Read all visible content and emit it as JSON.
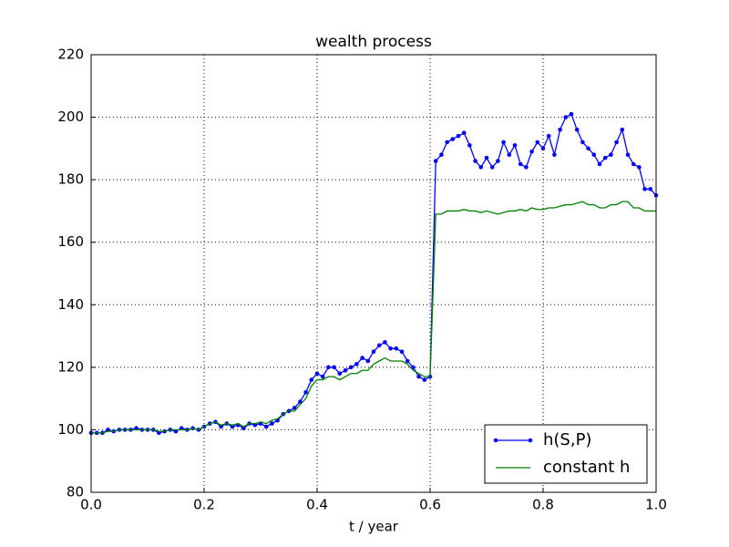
{
  "chart_data": {
    "type": "line",
    "title": "wealth process",
    "x_label": "t / year",
    "x": [
      0,
      0.01,
      0.02,
      0.03,
      0.04,
      0.05,
      0.06,
      0.07,
      0.08,
      0.09,
      0.1,
      0.11,
      0.12,
      0.13,
      0.14,
      0.15,
      0.16,
      0.17,
      0.18,
      0.19,
      0.2,
      0.21,
      0.22,
      0.23,
      0.24,
      0.25,
      0.26,
      0.27,
      0.28,
      0.29,
      0.3,
      0.31,
      0.32,
      0.33,
      0.34,
      0.35,
      0.36,
      0.37,
      0.38,
      0.39,
      0.4,
      0.41,
      0.42,
      0.43,
      0.44,
      0.45,
      0.46,
      0.47,
      0.48,
      0.49,
      0.5,
      0.51,
      0.52,
      0.53,
      0.54,
      0.55,
      0.56,
      0.57,
      0.58,
      0.59,
      0.6,
      0.61,
      0.62,
      0.63,
      0.64,
      0.65,
      0.66,
      0.67,
      0.68,
      0.69,
      0.7,
      0.71,
      0.72,
      0.73,
      0.74,
      0.75,
      0.76,
      0.77,
      0.78,
      0.79,
      0.8,
      0.81,
      0.82,
      0.83,
      0.84,
      0.85,
      0.86,
      0.87,
      0.88,
      0.89,
      0.9,
      0.91,
      0.92,
      0.93,
      0.94,
      0.95,
      0.96,
      0.97,
      0.98,
      0.99,
      1
    ],
    "series": [
      {
        "name": "h(S,P)",
        "color": "#0000ff",
        "marker": true,
        "values": [
          99,
          99,
          99,
          100,
          99.5,
          100,
          100,
          100,
          100.5,
          100,
          100,
          100,
          99,
          99.5,
          100,
          99.5,
          100.5,
          100,
          100.5,
          100,
          101,
          102,
          102.5,
          101,
          102,
          101,
          101.5,
          100.5,
          102,
          101.5,
          102,
          101,
          102,
          103,
          105,
          106,
          107,
          109,
          112,
          116,
          118,
          117,
          120,
          120,
          118,
          119,
          120,
          121,
          123,
          122,
          125,
          127,
          128,
          126,
          126,
          125,
          122,
          120,
          117,
          116,
          117,
          186,
          188,
          192,
          193,
          194,
          195,
          191,
          186,
          184,
          187,
          184,
          186,
          192,
          188,
          191,
          185,
          184,
          189,
          192,
          190,
          194,
          188,
          196,
          200,
          201,
          196,
          192,
          190,
          188,
          185,
          187,
          188,
          192,
          196,
          188,
          185,
          184,
          177,
          177,
          175
        ]
      },
      {
        "name": "constant h",
        "color": "#008000",
        "marker": false,
        "values": [
          99,
          99,
          99,
          99.5,
          99.5,
          100,
          100,
          100,
          100,
          100,
          100,
          100,
          99.5,
          99.5,
          100,
          100,
          100,
          100,
          100.5,
          100,
          101,
          102,
          102.5,
          101.5,
          102,
          101.5,
          102,
          101,
          102,
          102,
          102.5,
          102,
          103,
          103.5,
          105,
          106,
          106,
          108,
          110,
          114,
          116,
          116,
          117,
          117,
          116,
          117,
          118,
          118,
          119,
          119,
          121,
          122,
          123,
          122,
          122,
          122,
          121,
          119,
          118,
          117,
          117,
          169,
          169,
          170,
          170,
          170,
          170.5,
          170,
          170,
          169.5,
          170,
          169.5,
          169,
          169.5,
          170,
          170,
          170.5,
          170,
          171,
          170.5,
          170.5,
          171,
          171,
          171.5,
          172,
          172,
          172.5,
          173,
          172,
          172,
          171,
          171,
          172,
          172,
          173,
          173,
          171,
          171,
          170,
          170,
          170
        ]
      }
    ],
    "xlim": [
      0,
      1
    ],
    "ylim": [
      80,
      220
    ],
    "xticks": [
      {
        "value": 0,
        "label": "0.0"
      },
      0.2,
      0.4,
      0.6,
      0.8,
      {
        "value": 1,
        "label": "1.0"
      }
    ],
    "yticks": [
      80,
      100,
      120,
      140,
      160,
      180,
      200,
      220
    ],
    "grid": true,
    "legend": "lower right"
  }
}
